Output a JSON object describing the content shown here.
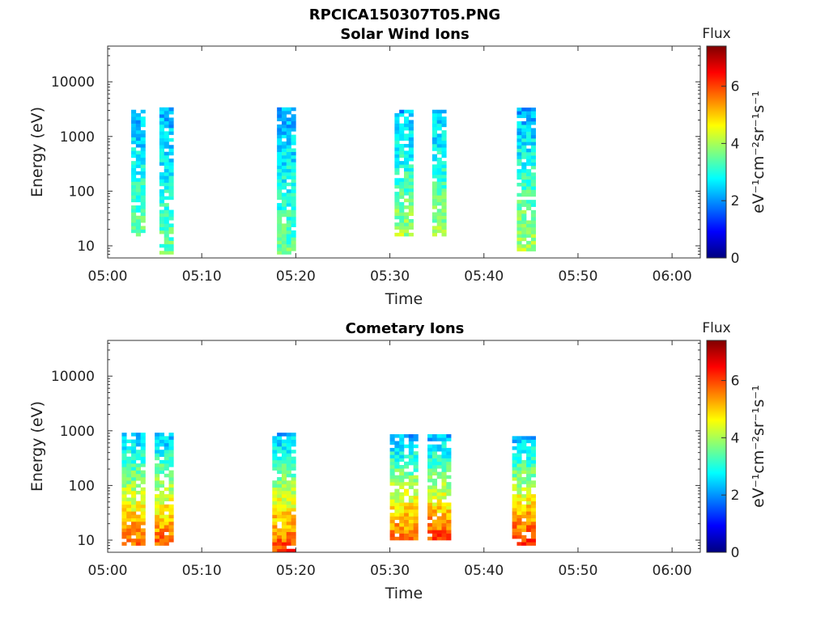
{
  "figure_title": "RPCICA150307T05.PNG",
  "colormap": [
    "#00007f",
    "#0000ff",
    "#007fff",
    "#00ffff",
    "#7fff7f",
    "#ffff00",
    "#ff7f00",
    "#ff0000",
    "#7f0000"
  ],
  "chart_data": [
    {
      "type": "heatmap",
      "title": "Solar Wind Ions",
      "xlabel": "Time",
      "ylabel": "Energy (eV)",
      "y_scale": "log",
      "xlim": [
        "05:00",
        "06:03"
      ],
      "ylim": [
        6,
        45000
      ],
      "x_ticks": [
        "05:00",
        "05:10",
        "05:20",
        "05:30",
        "05:40",
        "05:50",
        "06:00"
      ],
      "y_ticks": [
        {
          "value": 10,
          "label": "10"
        },
        {
          "value": 100,
          "label": "100"
        },
        {
          "value": 1000,
          "label": "1000"
        },
        {
          "value": 10000,
          "label": "10000"
        }
      ],
      "colorbar": {
        "title": "Flux",
        "label": "eV⁻¹cm⁻²sr⁻¹s⁻¹",
        "range": [
          0,
          7.4
        ],
        "ticks": [
          0,
          2,
          4,
          6
        ]
      },
      "grid": false,
      "bursts": [
        {
          "start": "05:02:30",
          "end": "05:04:00",
          "e_min": 15,
          "e_max": 3000,
          "peak_flux": 3.5
        },
        {
          "start": "05:05:30",
          "end": "05:07:00",
          "e_min": 7,
          "e_max": 3000,
          "peak_flux": 3.5
        },
        {
          "start": "05:18:00",
          "end": "05:20:00",
          "e_min": 7,
          "e_max": 3000,
          "peak_flux": 3.5
        },
        {
          "start": "05:30:30",
          "end": "05:32:30",
          "e_min": 15,
          "e_max": 3000,
          "peak_flux": 4.0
        },
        {
          "start": "05:34:30",
          "end": "05:36:00",
          "e_min": 15,
          "e_max": 3000,
          "peak_flux": 4.0
        },
        {
          "start": "05:43:30",
          "end": "05:45:30",
          "e_min": 8,
          "e_max": 3000,
          "peak_flux": 4.0
        }
      ]
    },
    {
      "type": "heatmap",
      "title": "Cometary Ions",
      "xlabel": "Time",
      "ylabel": "Energy (eV)",
      "y_scale": "log",
      "xlim": [
        "05:00",
        "06:03"
      ],
      "ylim": [
        6,
        45000
      ],
      "x_ticks": [
        "05:00",
        "05:10",
        "05:20",
        "05:30",
        "05:40",
        "05:50",
        "06:00"
      ],
      "y_ticks": [
        {
          "value": 10,
          "label": "10"
        },
        {
          "value": 100,
          "label": "100"
        },
        {
          "value": 1000,
          "label": "1000"
        },
        {
          "value": 10000,
          "label": "10000"
        }
      ],
      "colorbar": {
        "title": "Flux",
        "label": "eV⁻¹cm⁻²sr⁻¹s⁻¹",
        "range": [
          0,
          7.4
        ],
        "ticks": [
          0,
          2,
          4,
          6
        ]
      },
      "grid": false,
      "bursts": [
        {
          "start": "05:01:30",
          "end": "05:04:00",
          "e_min": 8,
          "e_max": 900,
          "peak_flux": 5.8
        },
        {
          "start": "05:05:00",
          "end": "05:07:00",
          "e_min": 8,
          "e_max": 900,
          "peak_flux": 5.8
        },
        {
          "start": "05:17:30",
          "end": "05:20:00",
          "e_min": 6,
          "e_max": 900,
          "peak_flux": 6.0
        },
        {
          "start": "05:30:00",
          "end": "05:33:00",
          "e_min": 10,
          "e_max": 800,
          "peak_flux": 5.8
        },
        {
          "start": "05:34:00",
          "end": "05:36:30",
          "e_min": 10,
          "e_max": 800,
          "peak_flux": 6.0
        },
        {
          "start": "05:43:00",
          "end": "05:45:30",
          "e_min": 8,
          "e_max": 800,
          "peak_flux": 6.2
        }
      ]
    }
  ]
}
